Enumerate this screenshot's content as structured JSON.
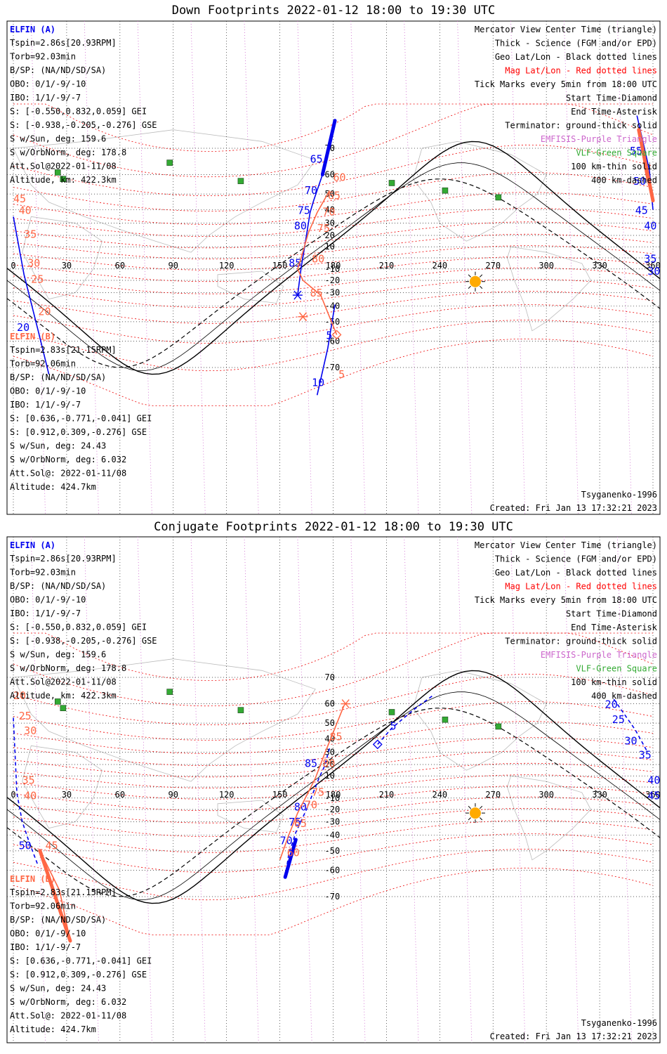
{
  "panels": [
    {
      "title": "Down Footprints 2022-01-12 18:00 to 19:30 UTC",
      "sat_a": {
        "name": "ELFIN (A)",
        "lines": [
          "Tspin=2.86s[20.93RPM]",
          "Torb=92.03min",
          "B/SP: (NA/ND/SD/SA)",
          "OBO: 0/1/-9/-10",
          "IBO: 1/1/-9/-7",
          "S: [-0.550,0.832,0.059] GEI",
          "S: [-0.938,-0.205,-0.276] GSE",
          "S w/Sun, deg: 159.6",
          "S w/OrbNorm, deg: 178.8",
          "Att.Sol@2022-01-11/08",
          "Altitude, km: 422.3km"
        ]
      },
      "sat_b": {
        "name": "ELFIN (B)",
        "lines": [
          "Tspin=2.83s[21.15RPM]",
          "Torb=92.06min",
          "B/SP: (NA/ND/SD/SA)",
          "OBO: 0/1/-9/-10",
          "IBO: 1/1/-9/-7",
          "S: [0.636,-0.771,-0.041] GEI",
          "S: [0.912,0.309,-0.276] GSE",
          "S w/Sun, deg: 24.43",
          "S w/OrbNorm, deg: 6.032",
          "Att.Sol@: 2022-01-11/08",
          "Altitude: 424.7km"
        ]
      },
      "legend": [
        {
          "text": "Mercator View Center Time (triangle)",
          "color": "#000000"
        },
        {
          "text": "Thick - Science (FGM and/or EPD)",
          "color": "#000000"
        },
        {
          "text": "Geo Lat/Lon - Black dotted lines",
          "color": "#000000"
        },
        {
          "text": "Mag Lat/Lon - Red dotted lines",
          "color": "#ff0000"
        },
        {
          "text": "Tick Marks every 5min from 18:00 UTC",
          "color": "#000000"
        },
        {
          "text": "Start Time-Diamond",
          "color": "#000000"
        },
        {
          "text": "End Time-Asterisk",
          "color": "#000000"
        },
        {
          "text": "Terminator: ground-thick solid",
          "color": "#000000"
        },
        {
          "text": "EMFISIS-Purple Triangle",
          "color": "#cc66cc"
        },
        {
          "text": "VLF-Green Square",
          "color": "#33aa33"
        },
        {
          "text": "100 km-thin solid",
          "color": "#000000"
        },
        {
          "text": "400 km-dashed",
          "color": "#000000"
        }
      ],
      "model": "Tsyganenko-1996",
      "created": "Created: Fri Jan 13 17:32:21 2023"
    },
    {
      "title": "Conjugate Footprints 2022-01-12 18:00 to 19:30 UTC",
      "sat_a": {
        "name": "ELFIN (A)",
        "lines": [
          "Tspin=2.86s[20.93RPM]",
          "Torb=92.03min",
          "B/SP: (NA/ND/SD/SA)",
          "OBO: 0/1/-9/-10",
          "IBO: 1/1/-9/-7",
          "S: [-0.550,0.832,0.059] GEI",
          "S: [-0.938,-0.205,-0.276] GSE",
          "S w/Sun, deg: 159.6",
          "S w/OrbNorm, deg: 178.8",
          "Att.Sol@2022-01-11/08",
          "Altitude, km: 422.3km"
        ]
      },
      "sat_b": {
        "name": "ELFIN (B)",
        "lines": [
          "Tspin=2.83s[21.15RPM]",
          "Torb=92.06min",
          "B/SP: (NA/ND/SD/SA)",
          "OBO: 0/1/-9/-10",
          "IBO: 1/1/-9/-7",
          "S: [0.636,-0.771,-0.041] GEI",
          "S: [0.912,0.309,-0.276] GSE",
          "S w/Sun, deg: 24.43",
          "S w/OrbNorm, deg: 6.032",
          "Att.Sol@: 2022-01-11/08",
          "Altitude: 424.7km"
        ]
      },
      "legend": [
        {
          "text": "Mercator View Center Time (triangle)",
          "color": "#000000"
        },
        {
          "text": "Thick - Science (FGM and/or EPD)",
          "color": "#000000"
        },
        {
          "text": "Geo Lat/Lon - Black dotted lines",
          "color": "#000000"
        },
        {
          "text": "Mag Lat/Lon - Red dotted lines",
          "color": "#ff0000"
        },
        {
          "text": "Tick Marks every 5min from 18:00 UTC",
          "color": "#000000"
        },
        {
          "text": "Start Time-Diamond",
          "color": "#000000"
        },
        {
          "text": "End Time-Asterisk",
          "color": "#000000"
        },
        {
          "text": "Terminator: ground-thick solid",
          "color": "#000000"
        },
        {
          "text": "EMFISIS-Purple Triangle",
          "color": "#cc66cc"
        },
        {
          "text": "VLF-Green Square",
          "color": "#33aa33"
        },
        {
          "text": "100 km-thin solid",
          "color": "#000000"
        },
        {
          "text": "400 km-dashed",
          "color": "#000000"
        }
      ],
      "model": "Tsyganenko-1996",
      "created": "Created: Fri Jan 13 17:32:21 2023"
    }
  ],
  "colors": {
    "ela": "#0000ee",
    "elb": "#ff6644",
    "sun": "#ffaa00",
    "vlf": "#33aa33",
    "emfisis": "#cc66cc",
    "magline": "#ee0000"
  },
  "chart_data": [
    {
      "type": "scatter",
      "title": "Down Footprints 2022-01-12 18:00 to 19:30 UTC",
      "xlabel": "",
      "ylabel": "",
      "xlim": [
        0,
        360
      ],
      "ylim": [
        -75,
        78
      ],
      "x_ticks": [
        0,
        30,
        60,
        90,
        120,
        150,
        180,
        210,
        240,
        270,
        300,
        330,
        360
      ],
      "lat_labels": {
        "lon": 180,
        "values": [
          70,
          60,
          50,
          40,
          30,
          20,
          10,
          -10,
          -20,
          -30,
          -40,
          -50,
          -60,
          -70
        ]
      },
      "grid": true,
      "sun": {
        "lon": 260,
        "lat": -21
      },
      "vlf_sites": [
        [
          88,
          65
        ],
        [
          25,
          61
        ],
        [
          28,
          58
        ],
        [
          128,
          57
        ],
        [
          213,
          56
        ],
        [
          243,
          52
        ],
        [
          273,
          48
        ]
      ],
      "series": [
        {
          "name": "ELFIN (A)",
          "color": "#0000ee",
          "points": [
            [
              181,
              -39
            ],
            [
              177,
              -63
            ],
            [
              171,
              -77
            ]
          ],
          "end": [
            160,
            -32
          ],
          "science": [],
          "ticks": [
            {
              "label": "5",
              "lon": 176,
              "lat": -59
            },
            {
              "label": "10",
              "lon": 168,
              "lat": -75
            }
          ]
        },
        {
          "name": "ELFIN (A) (continued)",
          "color": "#0000ee",
          "points": [
            [
              160,
              -32
            ],
            [
              162,
              -9
            ],
            [
              165,
              20
            ],
            [
              167,
              38
            ],
            [
              169,
              46
            ],
            [
              174,
              60
            ],
            [
              181,
              77
            ]
          ],
          "science": [
            [
              174,
              60
            ],
            [
              181,
              77
            ]
          ],
          "ticks": [
            {
              "label": "85",
              "lon": 155,
              "lat": -8
            },
            {
              "label": "80",
              "lon": 158,
              "lat": 25
            },
            {
              "label": "75",
              "lon": 160,
              "lat": 37
            },
            {
              "label": "70",
              "lon": 164,
              "lat": 50
            },
            {
              "label": "65",
              "lon": 167,
              "lat": 65
            }
          ]
        },
        {
          "name": "ELFIN (A) (wrapped)",
          "color": "#0000ee",
          "points": [
            [
              351,
              78
            ],
            [
              358,
              62
            ],
            [
              360,
              40
            ]
          ],
          "science": [],
          "ticks": [
            {
              "label": "55",
              "lon": 347,
              "lat": 68
            },
            {
              "label": "50",
              "lon": 349,
              "lat": 55
            },
            {
              "label": "45",
              "lon": 350,
              "lat": 37
            },
            {
              "label": "40",
              "lon": 355,
              "lat": 25
            },
            {
              "label": "35",
              "lon": 355,
              "lat": -4
            },
            {
              "label": "30",
              "lon": 357,
              "lat": -15
            }
          ]
        },
        {
          "name": "ELFIN (A) (west side)",
          "color": "#0000ee",
          "points": [
            [
              0,
              35
            ],
            [
              6,
              -15
            ],
            [
              14,
              -55
            ],
            [
              20,
              -72
            ]
          ],
          "science": [],
          "ticks": [
            {
              "label": "20",
              "lon": 2,
              "lat": -55
            }
          ]
        },
        {
          "name": "ELFIN (B)",
          "color": "#ff6644",
          "points": [
            [
              182,
              -57
            ],
            [
              173,
              -32
            ],
            [
              163,
              -20
            ],
            [
              160,
              -10
            ],
            [
              162,
              0
            ],
            [
              166,
              22
            ],
            [
              171,
              38
            ],
            [
              178,
              52
            ]
          ],
          "start": [
            182,
            -57
          ],
          "end": [
            163,
            -47
          ],
          "science": [],
          "ticks": [
            {
              "label": "60",
              "lon": 180,
              "lat": 57
            },
            {
              "label": "65",
              "lon": 177,
              "lat": 47
            },
            {
              "label": "70",
              "lon": 174,
              "lat": 36
            },
            {
              "label": "75",
              "lon": 171,
              "lat": 23
            },
            {
              "label": "80",
              "lon": 168,
              "lat": -4
            },
            {
              "label": "85",
              "lon": 167,
              "lat": -33
            },
            {
              "label": "5",
              "lon": 183,
              "lat": -73
            }
          ]
        },
        {
          "name": "ELFIN (B) (wrapped)",
          "color": "#ff6644",
          "points": [
            [
              352,
              75
            ],
            [
              356,
              60
            ],
            [
              360,
              46
            ]
          ],
          "science": [
            [
              352,
              75
            ],
            [
              360,
              46
            ]
          ],
          "ticks": [
            {
              "label": "40",
              "lon": 3,
              "lat": 37
            },
            {
              "label": "35",
              "lon": 6,
              "lat": 18
            },
            {
              "label": "30",
              "lon": 8,
              "lat": -8
            },
            {
              "label": "25",
              "lon": 10,
              "lat": -22
            },
            {
              "label": "20",
              "lon": 14,
              "lat": -46
            },
            {
              "label": "45",
              "lon": 0,
              "lat": 45
            }
          ]
        }
      ]
    },
    {
      "type": "scatter",
      "title": "Conjugate Footprints 2022-01-12 18:00 to 19:30 UTC",
      "xlabel": "",
      "ylabel": "",
      "xlim": [
        0,
        360
      ],
      "ylim": [
        -75,
        78
      ],
      "x_ticks": [
        0,
        30,
        60,
        90,
        120,
        150,
        180,
        210,
        240,
        270,
        300,
        330,
        360
      ],
      "lat_labels": {
        "lon": 180,
        "values": [
          70,
          60,
          50,
          40,
          30,
          20,
          10,
          -10,
          -20,
          -30,
          -40,
          -50,
          -60,
          -70
        ]
      },
      "grid": true,
      "sun": {
        "lon": 260,
        "lat": -23
      },
      "vlf_sites": [
        [
          88,
          65
        ],
        [
          25,
          61
        ],
        [
          28,
          58
        ],
        [
          128,
          57
        ],
        [
          213,
          56
        ],
        [
          243,
          52
        ],
        [
          273,
          48
        ]
      ],
      "series": [
        {
          "name": "ELFIN (A)",
          "color": "#0000ee",
          "points": [
            [
              205,
              36
            ],
            [
              213,
              47
            ],
            [
              225,
              57
            ],
            [
              237,
              64
            ]
          ],
          "start": [
            205,
            36
          ],
          "science": [],
          "ticks": [
            {
              "label": "5",
              "lon": 212,
              "lat": 46
            }
          ]
        },
        {
          "name": "ELFIN (A) (continued)",
          "color": "#0000ee",
          "points": [
            [
              178,
              33
            ],
            [
              175,
              18
            ],
            [
              172,
              8
            ],
            [
              165,
              -20
            ],
            [
              159,
              -38
            ],
            [
              155,
              -52
            ],
            [
              153,
              -63
            ]
          ],
          "science": [
            [
              159,
              -43
            ],
            [
              153,
              -63
            ]
          ],
          "ticks": [
            {
              "label": "85",
              "lon": 164,
              "lat": 18
            },
            {
              "label": "80",
              "lon": 158,
              "lat": -21
            },
            {
              "label": "75",
              "lon": 155,
              "lat": -33
            },
            {
              "label": "70",
              "lon": 150,
              "lat": -46
            }
          ]
        },
        {
          "name": "ELFIN (A) (wrapped)",
          "color": "#0000ee",
          "points": [
            [
              0,
              53
            ],
            [
              2,
              -6
            ],
            [
              5,
              -30
            ],
            [
              9,
              -45
            ],
            [
              14,
              -58
            ]
          ],
          "science": [],
          "ticks": [
            {
              "label": "50",
              "lon": 3,
              "lat": -49
            }
          ]
        },
        {
          "name": "ELFIN (A) (east side)",
          "color": "#0000ee",
          "points": [
            [
              338,
              62
            ],
            [
              350,
              46
            ],
            [
              357,
              30
            ]
          ],
          "science": [],
          "ticks": [
            {
              "label": "20",
              "lon": 333,
              "lat": 58
            },
            {
              "label": "25",
              "lon": 337,
              "lat": 50
            },
            {
              "label": "30",
              "lon": 344,
              "lat": 36
            },
            {
              "label": "35",
              "lon": 352,
              "lat": 25
            },
            {
              "label": "40",
              "lon": 357,
              "lat": 3
            },
            {
              "label": "45",
              "lon": 357,
              "lat": -11
            }
          ]
        },
        {
          "name": "ELFIN (B)",
          "color": "#ff6644",
          "points": [
            [
              150,
              -55
            ],
            [
              155,
              -40
            ],
            [
              160,
              -23
            ],
            [
              165,
              -8
            ],
            [
              170,
              8
            ],
            [
              175,
              28
            ],
            [
              181,
              47
            ],
            [
              186,
              59
            ]
          ],
          "end": [
            187,
            60
          ],
          "science": [],
          "ticks": [
            {
              "label": "85",
              "lon": 178,
              "lat": 39
            },
            {
              "label": "80",
              "lon": 174,
              "lat": 18
            },
            {
              "label": "75",
              "lon": 168,
              "lat": -8
            },
            {
              "label": "70",
              "lon": 164,
              "lat": -19
            },
            {
              "label": "65",
              "lon": 158,
              "lat": -34
            },
            {
              "label": "60",
              "lon": 154,
              "lat": -53
            }
          ]
        },
        {
          "name": "ELFIN (B) (wrapped)",
          "color": "#ff6644",
          "points": [
            [
              15,
              -50
            ],
            [
              26,
              -68
            ],
            [
              32,
              -80
            ]
          ],
          "science": [
            [
              15,
              -50
            ],
            [
              32,
              -80
            ]
          ],
          "ticks": [
            {
              "label": "20",
              "lon": 0,
              "lat": 62
            },
            {
              "label": "25",
              "lon": 3,
              "lat": 52
            },
            {
              "label": "30",
              "lon": 6,
              "lat": 43
            },
            {
              "label": "35",
              "lon": 5,
              "lat": 3
            },
            {
              "label": "40",
              "lon": 6,
              "lat": -11
            },
            {
              "label": "45",
              "lon": 18,
              "lat": -49
            }
          ]
        }
      ]
    }
  ]
}
